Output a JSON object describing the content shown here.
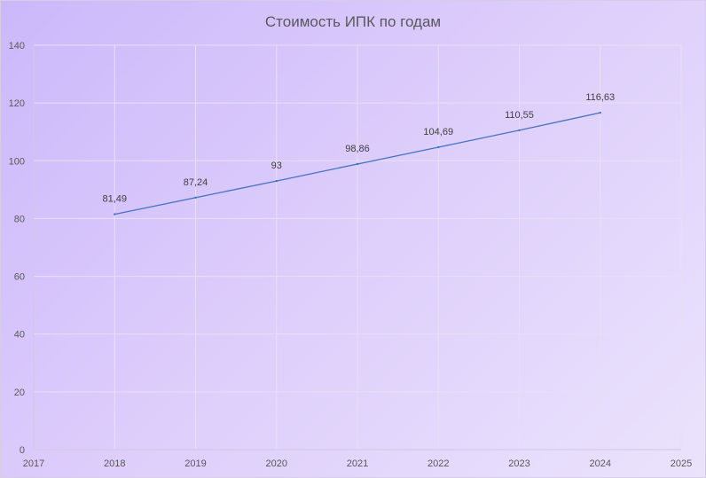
{
  "chart_data": {
    "type": "line",
    "title": "Стоимость ИПК по годам",
    "xlabel": "",
    "ylabel": "",
    "x": [
      2018,
      2019,
      2020,
      2021,
      2022,
      2023,
      2024
    ],
    "series": [
      {
        "values": [
          81.49,
          87.24,
          93,
          98.86,
          104.69,
          110.55,
          116.63
        ]
      }
    ],
    "data_labels": [
      "81,49",
      "87,24",
      "93",
      "98,86",
      "104,69",
      "110,55",
      "116,63"
    ],
    "xlim": [
      2017,
      2025
    ],
    "ylim": [
      0,
      140
    ],
    "x_ticks": [
      "2017",
      "2018",
      "2019",
      "2020",
      "2021",
      "2022",
      "2023",
      "2024",
      "2025"
    ],
    "y_ticks": [
      "0",
      "20",
      "40",
      "60",
      "80",
      "100",
      "120",
      "140"
    ],
    "grid": true,
    "legend": "none",
    "colors": {
      "line": "#4472c4",
      "text": "#595959",
      "grid": "#e7e0f4"
    }
  }
}
